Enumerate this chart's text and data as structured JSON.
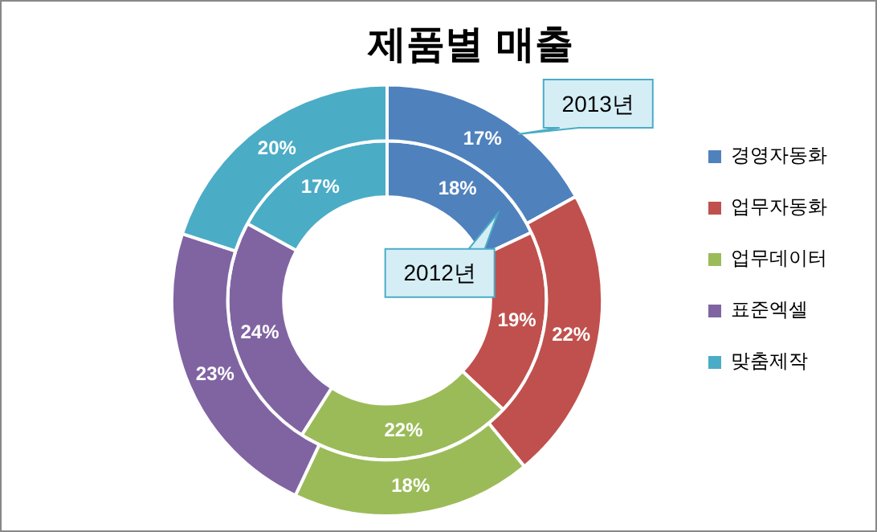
{
  "chart_data": {
    "type": "donut",
    "title": "제품별 매출",
    "categories": [
      "경영자동화",
      "업무자동화",
      "업무데이터",
      "표준엑셀",
      "맞춤제작"
    ],
    "colors": [
      "#4f81bd",
      "#c0504d",
      "#9bbb59",
      "#8064a2",
      "#4bacc6"
    ],
    "series": [
      {
        "name": "2012년",
        "values": [
          18,
          19,
          22,
          24,
          17
        ],
        "value_labels": [
          "18%",
          "19%",
          "22%",
          "24%",
          "17%"
        ]
      },
      {
        "name": "2013년",
        "values": [
          17,
          22,
          18,
          23,
          20
        ],
        "value_labels": [
          "17%",
          "22%",
          "18%",
          "23%",
          "20%"
        ]
      }
    ],
    "legend": "right"
  }
}
